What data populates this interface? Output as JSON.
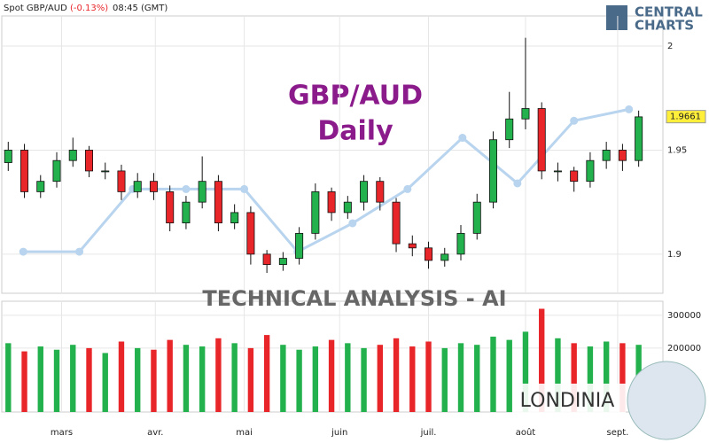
{
  "header": {
    "instrument": "Spot GBP/AUD",
    "change": "(-0.13%)",
    "time": "08:45 (GMT)",
    "logo_top": "CENTRAL",
    "logo_bottom": "CHARTS",
    "banner": "TECHNICAL  ANALYSIS - AI",
    "brand": "LONDINIA"
  },
  "chart_data": [
    {
      "type": "candlestick",
      "title": "GBP/AUD",
      "subtitle": "Daily",
      "open": [
        1.944,
        1.95,
        1.93,
        1.935,
        1.945,
        1.95,
        1.94,
        1.94,
        1.93,
        1.935,
        1.93,
        1.915,
        1.925,
        1.935,
        1.915,
        1.92,
        1.9,
        1.895,
        1.898,
        1.91,
        1.93,
        1.92,
        1.925,
        1.935,
        1.925,
        1.905,
        1.903,
        1.897,
        1.9,
        1.91,
        1.925,
        1.955,
        1.965,
        1.97,
        1.94,
        1.94,
        1.935,
        1.945,
        1.95,
        1.945
      ],
      "close": [
        1.95,
        1.93,
        1.935,
        1.945,
        1.95,
        1.94,
        1.94,
        1.93,
        1.935,
        1.93,
        1.915,
        1.925,
        1.935,
        1.915,
        1.92,
        1.9,
        1.895,
        1.898,
        1.91,
        1.93,
        1.92,
        1.925,
        1.935,
        1.925,
        1.905,
        1.903,
        1.897,
        1.9,
        1.91,
        1.925,
        1.955,
        1.965,
        1.97,
        1.94,
        1.94,
        1.935,
        1.945,
        1.95,
        1.945,
        1.966
      ],
      "high": [
        1.954,
        1.953,
        1.938,
        1.949,
        1.956,
        1.952,
        1.944,
        1.943,
        1.939,
        1.939,
        1.933,
        1.928,
        1.947,
        1.938,
        1.924,
        1.923,
        1.902,
        1.901,
        1.913,
        1.934,
        1.932,
        1.928,
        1.938,
        1.937,
        1.927,
        1.909,
        1.906,
        1.903,
        1.914,
        1.929,
        1.959,
        1.978,
        2.004,
        1.973,
        1.944,
        1.942,
        1.949,
        1.954,
        1.953,
        1.969
      ],
      "low": [
        1.94,
        1.927,
        1.927,
        1.932,
        1.942,
        1.937,
        1.936,
        1.926,
        1.927,
        1.926,
        1.911,
        1.912,
        1.922,
        1.911,
        1.912,
        1.895,
        1.891,
        1.892,
        1.895,
        1.907,
        1.916,
        1.917,
        1.921,
        1.921,
        1.901,
        1.899,
        1.893,
        1.894,
        1.897,
        1.907,
        1.922,
        1.951,
        1.96,
        1.936,
        1.935,
        1.93,
        1.932,
        1.941,
        1.94,
        1.942
      ],
      "up_color": "#22b14c",
      "down_color": "#e8262a",
      "ylim": [
        1.8812,
        2.0145
      ],
      "yticks": [
        1.9,
        1.95,
        2
      ],
      "xlim": [
        -0.4,
        40.5
      ],
      "xticks": [
        {
          "value": 3.3,
          "label": "mars"
        },
        {
          "value": 9.1,
          "label": "avr."
        },
        {
          "value": 14.6,
          "label": "mai"
        },
        {
          "value": 20.5,
          "label": "juin"
        },
        {
          "value": 26,
          "label": "juil."
        },
        {
          "value": 32,
          "label": "août"
        },
        {
          "value": 37.7,
          "label": "sept."
        }
      ],
      "last_price": 1.9661,
      "indicator": {
        "x": [
          0.93,
          4.4,
          7.7,
          11,
          14.6,
          17.9,
          21.3,
          24.7,
          28.1,
          31.5,
          35,
          38.4
        ],
        "values": [
          80,
          80,
          91,
          91,
          91,
          80,
          85,
          91,
          100,
          92,
          103,
          105
        ],
        "ylim": [
          72.7,
          121.4
        ],
        "color": "#b8d4ee"
      },
      "grid": true
    },
    {
      "type": "volume",
      "values": [
        215000,
        190000,
        205000,
        195000,
        210000,
        200000,
        185000,
        220000,
        200000,
        195000,
        225000,
        210000,
        205000,
        230000,
        215000,
        200000,
        240000,
        210000,
        195000,
        205000,
        225000,
        215000,
        200000,
        210000,
        230000,
        205000,
        220000,
        200000,
        215000,
        210000,
        235000,
        225000,
        250000,
        320000,
        230000,
        215000,
        205000,
        220000,
        215000,
        210000
      ],
      "ylim": [
        5000,
        343000
      ],
      "yticks": [
        200000,
        300000
      ],
      "grid": true
    }
  ]
}
